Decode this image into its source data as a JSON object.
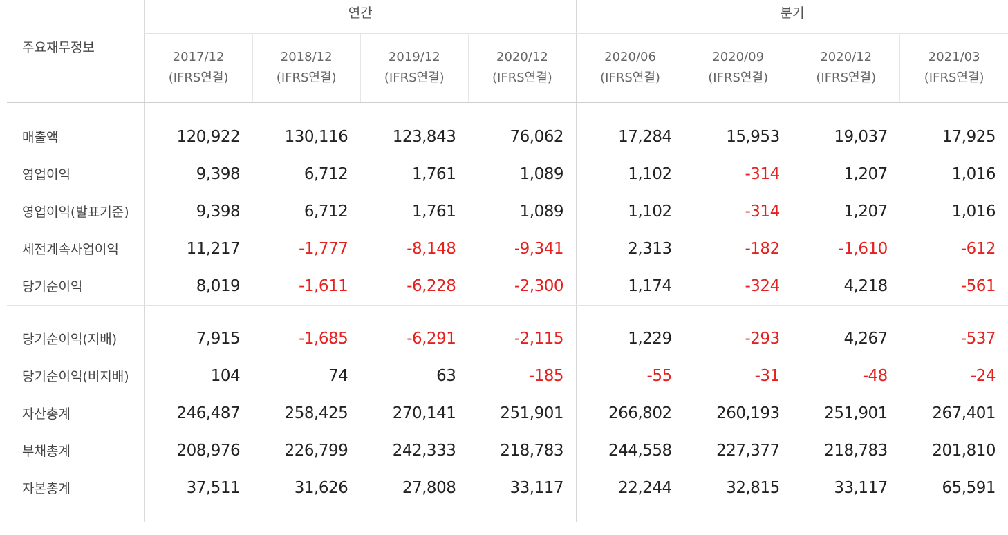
{
  "header": {
    "label_title": "주요재무정보",
    "groups": [
      {
        "label": "연간"
      },
      {
        "label": "분기"
      }
    ],
    "periods": [
      {
        "date": "2017/12",
        "type": "(IFRS연결)"
      },
      {
        "date": "2018/12",
        "type": "(IFRS연결)"
      },
      {
        "date": "2019/12",
        "type": "(IFRS연결)"
      },
      {
        "date": "2020/12",
        "type": "(IFRS연결)"
      },
      {
        "date": "2020/06",
        "type": "(IFRS연결)"
      },
      {
        "date": "2020/09",
        "type": "(IFRS연결)"
      },
      {
        "date": "2020/12",
        "type": "(IFRS연결)"
      },
      {
        "date": "2021/03",
        "type": "(IFRS연결)"
      }
    ]
  },
  "negative_color": "#e5201e",
  "sections": [
    {
      "rows": [
        {
          "label": "매출액",
          "values": [
            "120,922",
            "130,116",
            "123,843",
            "76,062",
            "17,284",
            "15,953",
            "19,037",
            "17,925"
          ]
        },
        {
          "label": "영업이익",
          "values": [
            "9,398",
            "6,712",
            "1,761",
            "1,089",
            "1,102",
            "-314",
            "1,207",
            "1,016"
          ]
        },
        {
          "label": "영업이익(발표기준)",
          "values": [
            "9,398",
            "6,712",
            "1,761",
            "1,089",
            "1,102",
            "-314",
            "1,207",
            "1,016"
          ]
        },
        {
          "label": "세전계속사업이익",
          "values": [
            "11,217",
            "-1,777",
            "-8,148",
            "-9,341",
            "2,313",
            "-182",
            "-1,610",
            "-612"
          ]
        },
        {
          "label": "당기순이익",
          "values": [
            "8,019",
            "-1,611",
            "-6,228",
            "-2,300",
            "1,174",
            "-324",
            "4,218",
            "-561"
          ]
        }
      ]
    },
    {
      "rows": [
        {
          "label": "당기순이익(지배)",
          "values": [
            "7,915",
            "-1,685",
            "-6,291",
            "-2,115",
            "1,229",
            "-293",
            "4,267",
            "-537"
          ]
        },
        {
          "label": "당기순이익(비지배)",
          "values": [
            "104",
            "74",
            "63",
            "-185",
            "-55",
            "-31",
            "-48",
            "-24"
          ]
        },
        {
          "label": "자산총계",
          "values": [
            "246,487",
            "258,425",
            "270,141",
            "251,901",
            "266,802",
            "260,193",
            "251,901",
            "267,401"
          ]
        },
        {
          "label": "부채총계",
          "values": [
            "208,976",
            "226,799",
            "242,333",
            "218,783",
            "244,558",
            "227,377",
            "218,783",
            "201,810"
          ]
        },
        {
          "label": "자본총계",
          "values": [
            "37,511",
            "31,626",
            "27,808",
            "33,117",
            "22,244",
            "32,815",
            "33,117",
            "65,591"
          ]
        }
      ]
    }
  ]
}
